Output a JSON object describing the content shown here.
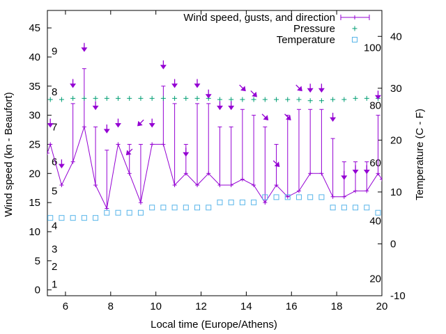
{
  "chart_data": {
    "type": "line",
    "xlabel": "Local time (Europe/Athens)",
    "ylabel": "Wind speed (kn - Beaufort)",
    "y2label": "Temperature (C - F)",
    "x_ticks": [
      6,
      8,
      10,
      12,
      14,
      16,
      18,
      20
    ],
    "xlim": [
      5.2,
      20
    ],
    "ylim": [
      -1,
      48
    ],
    "y_ticks": [
      0,
      5,
      10,
      15,
      20,
      25,
      30,
      35,
      40,
      45
    ],
    "y2lim": [
      -10,
      45
    ],
    "y2_ticks": [
      -10,
      0,
      10,
      20,
      30,
      40
    ],
    "beaufort_labels": [
      {
        "text": "1",
        "y": 1
      },
      {
        "text": "2",
        "y": 4
      },
      {
        "text": "3",
        "y": 7
      },
      {
        "text": "4",
        "y": 11
      },
      {
        "text": "5",
        "y": 17
      },
      {
        "text": "6",
        "y": 22
      },
      {
        "text": "7",
        "y": 28
      },
      {
        "text": "8",
        "y": 34
      },
      {
        "text": "9",
        "y": 41
      }
    ],
    "fahrenheit_labels": [
      {
        "text": "20",
        "t": -6.7
      },
      {
        "text": "40",
        "t": 4.4
      },
      {
        "text": "60",
        "t": 15.6
      },
      {
        "text": "80",
        "t": 26.7
      },
      {
        "text": "100",
        "t": 37.8
      }
    ],
    "legend": {
      "placement": "top-right",
      "entries": [
        {
          "label": "Wind speed, gusts, and direction",
          "symbol": "errorbar",
          "color": "#9400d3"
        },
        {
          "label": "Pressure",
          "symbol": "plus",
          "color": "#009e73"
        },
        {
          "label": "Temperature",
          "symbol": "square",
          "color": "#56b4e9"
        }
      ]
    },
    "series": [
      {
        "name": "Wind speed, gusts, and direction",
        "color": "#9400d3",
        "x": [
          5.2,
          5.33,
          5.83,
          6.33,
          6.83,
          7.33,
          7.83,
          8.33,
          8.83,
          9.33,
          9.83,
          10.33,
          10.83,
          11.33,
          11.83,
          12.33,
          12.83,
          13.33,
          13.83,
          14.33,
          14.83,
          15.33,
          15.83,
          16.33,
          16.83,
          17.33,
          17.83,
          18.33,
          18.83,
          19.33,
          19.83,
          20.0
        ],
        "y": [
          23.5,
          25,
          18,
          22,
          28,
          18,
          14,
          25,
          20,
          15,
          25,
          25,
          18,
          20,
          18,
          20,
          18,
          18,
          19,
          18,
          15,
          18,
          16,
          17,
          20,
          20,
          16,
          16,
          17,
          17,
          20,
          19
        ],
        "gust": [
          null,
          null,
          null,
          32,
          38,
          28,
          24,
          25,
          25,
          25,
          25,
          35,
          32,
          25,
          32,
          32,
          28,
          28,
          31,
          30,
          28,
          25,
          30,
          31,
          31,
          31,
          26,
          22,
          22,
          22,
          30,
          null
        ]
      },
      {
        "name": "Pressure",
        "color": "#009e73",
        "x": [
          5.33,
          5.83,
          6.33,
          6.83,
          7.33,
          7.83,
          8.33,
          8.83,
          9.33,
          9.83,
          10.33,
          10.83,
          11.33,
          11.83,
          12.33,
          12.83,
          13.33,
          13.83,
          14.33,
          14.83,
          15.33,
          15.83,
          16.33,
          16.83,
          17.33,
          17.83,
          18.33,
          18.83,
          19.33,
          19.83
        ],
        "y": [
          32.7,
          32.7,
          32.9,
          32.9,
          32.9,
          32.9,
          32.9,
          32.9,
          32.9,
          32.9,
          32.9,
          32.9,
          32.9,
          32.9,
          32.9,
          32.7,
          32.7,
          32.7,
          32.7,
          32.7,
          32.7,
          32.7,
          32.7,
          32.5,
          32.5,
          32.7,
          32.7,
          32.9,
          32.9,
          32.9
        ]
      },
      {
        "name": "Temperature",
        "color": "#56b4e9",
        "x": [
          5.33,
          5.83,
          6.33,
          6.83,
          7.33,
          7.83,
          8.33,
          8.83,
          9.33,
          9.83,
          10.33,
          10.83,
          11.33,
          11.83,
          12.33,
          12.83,
          13.33,
          13.83,
          14.33,
          14.83,
          15.33,
          15.83,
          16.33,
          16.83,
          17.33,
          17.83,
          18.33,
          18.83,
          19.33,
          19.83
        ],
        "y": [
          5,
          5,
          5,
          5,
          5,
          6,
          6,
          6,
          6,
          7,
          7,
          7,
          7,
          7,
          7,
          8,
          8,
          8,
          8,
          9,
          9,
          9,
          9,
          9,
          9,
          7,
          7,
          7,
          7,
          6
        ]
      }
    ],
    "direction_arrows": [
      {
        "x": 5.33,
        "y": 28.7,
        "dir": "S"
      },
      {
        "x": 5.83,
        "y": 21.7,
        "dir": "S"
      },
      {
        "x": 6.33,
        "y": 35.5,
        "dir": "S"
      },
      {
        "x": 6.83,
        "y": 41.7,
        "dir": "S"
      },
      {
        "x": 7.33,
        "y": 31.7,
        "dir": "S"
      },
      {
        "x": 7.83,
        "y": 27.7,
        "dir": "S"
      },
      {
        "x": 8.33,
        "y": 28.7,
        "dir": "S"
      },
      {
        "x": 8.83,
        "y": 23.7,
        "dir": "SW"
      },
      {
        "x": 9.33,
        "y": 28.7,
        "dir": "SW"
      },
      {
        "x": 9.83,
        "y": 28.7,
        "dir": "S"
      },
      {
        "x": 10.33,
        "y": 38.7,
        "dir": "S"
      },
      {
        "x": 10.83,
        "y": 35.5,
        "dir": "S"
      },
      {
        "x": 11.33,
        "y": 23.7,
        "dir": "S"
      },
      {
        "x": 11.83,
        "y": 35.5,
        "dir": "S"
      },
      {
        "x": 12.33,
        "y": 33.7,
        "dir": "S"
      },
      {
        "x": 12.83,
        "y": 31.7,
        "dir": "S"
      },
      {
        "x": 13.33,
        "y": 31.7,
        "dir": "S"
      },
      {
        "x": 13.83,
        "y": 34.7,
        "dir": "SE"
      },
      {
        "x": 14.33,
        "y": 33.7,
        "dir": "SE"
      },
      {
        "x": 14.83,
        "y": 29.7,
        "dir": "SE"
      },
      {
        "x": 15.33,
        "y": 21.7,
        "dir": "SE"
      },
      {
        "x": 15.83,
        "y": 29.7,
        "dir": "SE"
      },
      {
        "x": 16.33,
        "y": 34.7,
        "dir": "SE"
      },
      {
        "x": 16.83,
        "y": 34.7,
        "dir": "S"
      },
      {
        "x": 17.33,
        "y": 34.7,
        "dir": "S"
      },
      {
        "x": 17.83,
        "y": 29.7,
        "dir": "S"
      },
      {
        "x": 18.33,
        "y": 19.7,
        "dir": "S"
      },
      {
        "x": 18.83,
        "y": 20.7,
        "dir": "S"
      },
      {
        "x": 19.33,
        "y": 20.7,
        "dir": "S"
      },
      {
        "x": 19.83,
        "y": 33.5,
        "dir": "S"
      }
    ]
  }
}
